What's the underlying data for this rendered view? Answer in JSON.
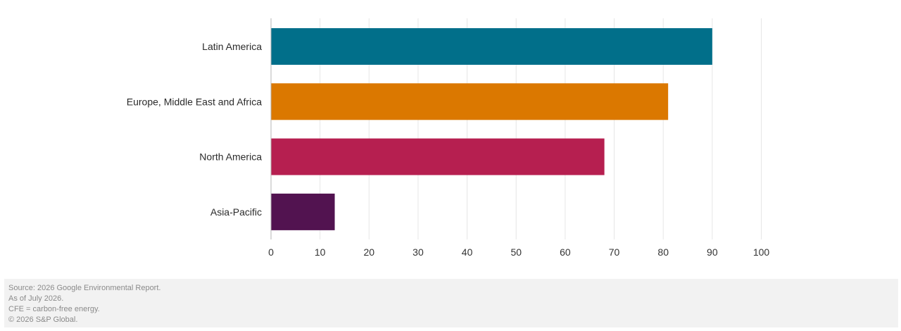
{
  "chart_data": {
    "type": "bar",
    "orientation": "horizontal",
    "categories": [
      "Latin America",
      "Europe, Middle East and Africa",
      "North America",
      "Asia-Pacific"
    ],
    "values": [
      90,
      81,
      68,
      13
    ],
    "colors": [
      "#016f8a",
      "#db7800",
      "#b61f50",
      "#521350"
    ],
    "xlim": [
      0,
      100
    ],
    "xticks": [
      0,
      10,
      20,
      30,
      40,
      50,
      60,
      70,
      80,
      90,
      100
    ],
    "grid": true
  },
  "footer": {
    "lines": [
      "Source: 2026 Google Environmental Report.",
      "As of July 2026.",
      "CFE = carbon-free energy.",
      "© 2026 S&P Global."
    ]
  }
}
